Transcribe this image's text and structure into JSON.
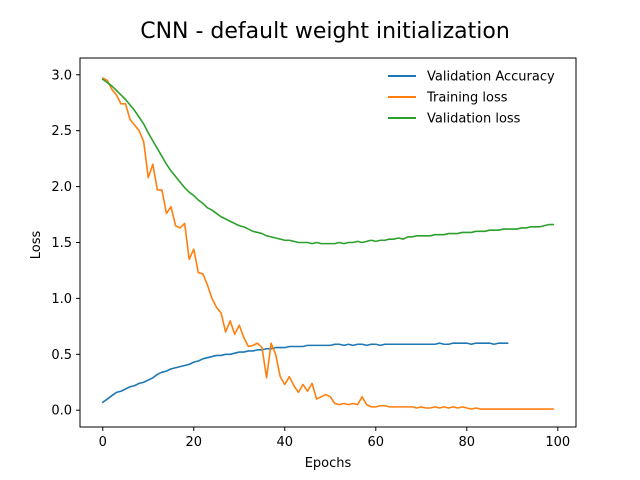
{
  "chart_data": {
    "type": "line",
    "title": "CNN - default weight initialization",
    "xlabel": "Epochs",
    "ylabel": "Loss",
    "xlim": [
      -5,
      104
    ],
    "ylim": [
      -0.15,
      3.15
    ],
    "xticks": [
      0,
      20,
      40,
      60,
      80,
      100
    ],
    "yticks": [
      0.0,
      0.5,
      1.0,
      1.5,
      2.0,
      2.5,
      3.0
    ],
    "grid": false,
    "legend_position": "top-right",
    "series": [
      {
        "name": "Validation Accuracy",
        "color": "#1f77b4",
        "x_start": 0,
        "values": [
          0.07,
          0.1,
          0.13,
          0.16,
          0.17,
          0.19,
          0.21,
          0.22,
          0.24,
          0.25,
          0.27,
          0.29,
          0.32,
          0.34,
          0.35,
          0.37,
          0.38,
          0.39,
          0.4,
          0.41,
          0.43,
          0.44,
          0.46,
          0.47,
          0.48,
          0.49,
          0.49,
          0.5,
          0.5,
          0.51,
          0.52,
          0.52,
          0.53,
          0.53,
          0.54,
          0.54,
          0.55,
          0.55,
          0.56,
          0.56,
          0.56,
          0.57,
          0.57,
          0.57,
          0.57,
          0.58,
          0.58,
          0.58,
          0.58,
          0.58,
          0.58,
          0.59,
          0.59,
          0.58,
          0.59,
          0.58,
          0.59,
          0.59,
          0.58,
          0.59,
          0.59,
          0.58,
          0.59,
          0.59,
          0.59,
          0.59,
          0.59,
          0.59,
          0.59,
          0.59,
          0.59,
          0.59,
          0.59,
          0.59,
          0.6,
          0.59,
          0.59,
          0.6,
          0.6,
          0.6,
          0.6,
          0.59,
          0.6,
          0.6,
          0.6,
          0.6,
          0.59,
          0.6,
          0.6,
          0.6
        ]
      },
      {
        "name": "Training loss",
        "color": "#ff7f0e",
        "x_start": 0,
        "values": [
          2.97,
          2.95,
          2.87,
          2.82,
          2.74,
          2.74,
          2.6,
          2.55,
          2.5,
          2.4,
          2.08,
          2.2,
          1.97,
          1.97,
          1.76,
          1.82,
          1.65,
          1.63,
          1.67,
          1.35,
          1.44,
          1.23,
          1.22,
          1.12,
          1.0,
          0.92,
          0.87,
          0.7,
          0.8,
          0.68,
          0.76,
          0.65,
          0.57,
          0.58,
          0.6,
          0.56,
          0.29,
          0.6,
          0.5,
          0.3,
          0.23,
          0.3,
          0.22,
          0.16,
          0.23,
          0.17,
          0.24,
          0.1,
          0.12,
          0.14,
          0.12,
          0.06,
          0.05,
          0.06,
          0.05,
          0.06,
          0.05,
          0.12,
          0.05,
          0.03,
          0.03,
          0.04,
          0.04,
          0.03,
          0.03,
          0.03,
          0.03,
          0.03,
          0.03,
          0.02,
          0.03,
          0.02,
          0.02,
          0.03,
          0.02,
          0.03,
          0.02,
          0.03,
          0.02,
          0.03,
          0.02,
          0.01,
          0.02,
          0.01,
          0.01,
          0.01,
          0.01,
          0.01,
          0.01,
          0.01,
          0.01,
          0.01,
          0.01,
          0.01,
          0.01,
          0.01,
          0.01,
          0.01,
          0.01,
          0.01
        ]
      },
      {
        "name": "Validation loss",
        "color": "#2ca02c",
        "x_start": 0,
        "values": [
          2.96,
          2.93,
          2.9,
          2.86,
          2.82,
          2.78,
          2.73,
          2.68,
          2.62,
          2.56,
          2.48,
          2.41,
          2.34,
          2.27,
          2.2,
          2.14,
          2.09,
          2.04,
          1.99,
          1.95,
          1.92,
          1.88,
          1.85,
          1.81,
          1.79,
          1.76,
          1.73,
          1.71,
          1.69,
          1.67,
          1.65,
          1.64,
          1.62,
          1.6,
          1.59,
          1.58,
          1.56,
          1.55,
          1.54,
          1.53,
          1.52,
          1.52,
          1.51,
          1.5,
          1.5,
          1.5,
          1.49,
          1.5,
          1.49,
          1.49,
          1.49,
          1.49,
          1.5,
          1.49,
          1.5,
          1.5,
          1.51,
          1.5,
          1.51,
          1.52,
          1.51,
          1.52,
          1.52,
          1.53,
          1.53,
          1.54,
          1.53,
          1.55,
          1.55,
          1.56,
          1.56,
          1.56,
          1.56,
          1.57,
          1.57,
          1.57,
          1.58,
          1.58,
          1.58,
          1.59,
          1.59,
          1.59,
          1.6,
          1.6,
          1.6,
          1.61,
          1.61,
          1.61,
          1.62,
          1.62,
          1.62,
          1.62,
          1.63,
          1.63,
          1.64,
          1.64,
          1.64,
          1.65,
          1.66,
          1.66
        ]
      }
    ]
  }
}
